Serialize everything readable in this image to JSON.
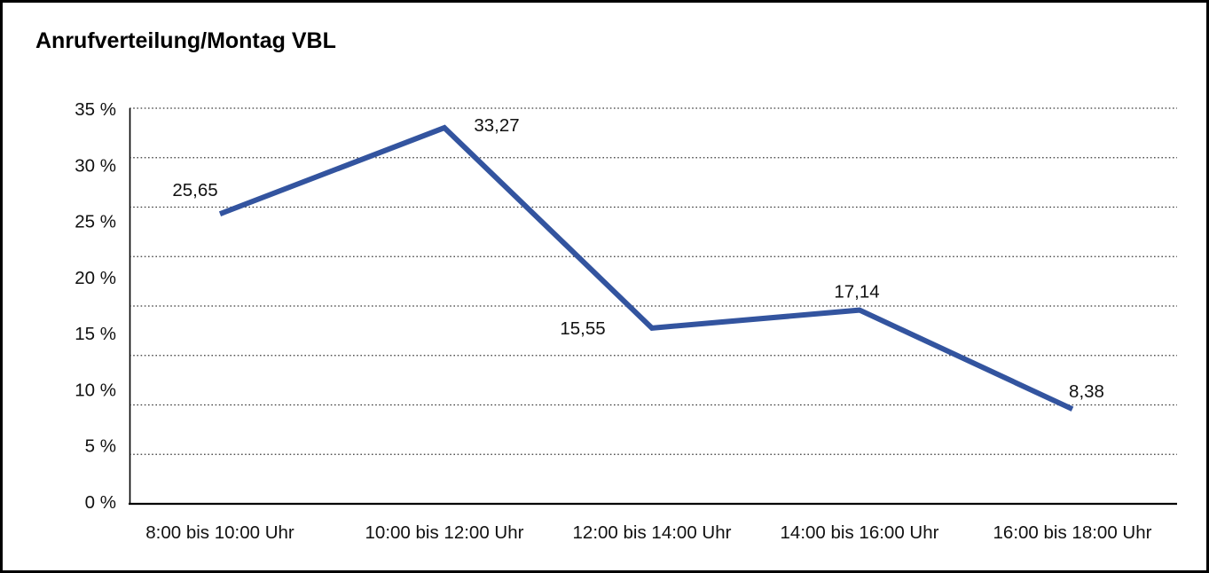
{
  "chart_data": {
    "type": "line",
    "title": "Anrufverteilung/Montag VBL",
    "categories": [
      "8:00 bis 10:00 Uhr",
      "10:00 bis 12:00 Uhr",
      "12:00 bis 14:00 Uhr",
      "14:00 bis 16:00 Uhr",
      "16:00 bis 18:00 Uhr"
    ],
    "values": [
      25.65,
      33.27,
      15.55,
      17.14,
      8.38
    ],
    "point_labels": [
      "25,65",
      "33,27",
      "15,55",
      "17,14",
      "8,38"
    ],
    "y_tick_labels": [
      "35 %",
      "30 %",
      "25 %",
      "20 %",
      "15 %",
      "10 %",
      "5 %",
      "0 %"
    ],
    "ylim": [
      0,
      35
    ],
    "xlabel": "",
    "ylabel": "",
    "legend": "none",
    "grid": "horizontal-dotted",
    "colors": {
      "line": "#33549F",
      "grid": "#3a3a3a",
      "axis": "#000000",
      "text": "#111111",
      "background": "#ffffff",
      "border": "#000000"
    }
  }
}
